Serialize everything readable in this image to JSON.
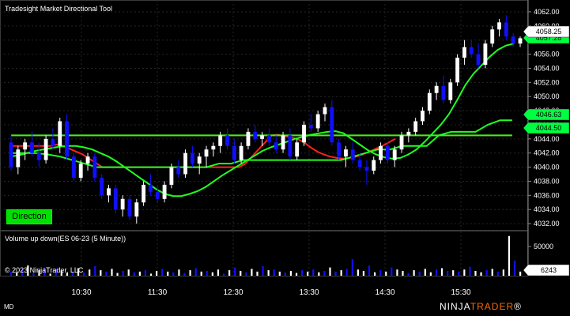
{
  "title": "Tradesight Market Directional Tool",
  "direction_button": "Direction",
  "volume_panel_title": "Volume up down(ES 06-23 (5 Minute))",
  "copyright": "© 2023 NinjaTrader, LLC",
  "status_label": "MD",
  "logo": {
    "part1": "NINJA",
    "part2": "TRADER",
    "suffix": "®"
  },
  "colors": {
    "up_candle": "#ffffff",
    "down_candle": "#1010ff",
    "red_line": "#ff2020",
    "green_line": "#20ff20",
    "badge_green": "#00ff40",
    "direction_bg": "#00e000",
    "logo_accent": "#ff6a00"
  },
  "price_axis": {
    "ticks": [
      "4062.00",
      "4060.00",
      "4058.00",
      "4056.00",
      "4054.00",
      "4052.00",
      "4050.00",
      "4048.00",
      "4046.00",
      "4044.00",
      "4042.00",
      "4040.00",
      "4038.00",
      "4036.00",
      "4034.00",
      "4032.00"
    ],
    "tick_values": [
      4062,
      4060,
      4058,
      4056,
      4054,
      4052,
      4050,
      4048,
      4046,
      4044,
      4042,
      4040,
      4038,
      4036,
      4034,
      4032
    ]
  },
  "price_badges": [
    {
      "label": "4058.25",
      "value": 4058.25,
      "style": "white"
    },
    {
      "label": "4057.28",
      "value": 4057.28,
      "style": "green"
    },
    {
      "label": "4046.63",
      "value": 4046.63,
      "style": "green"
    },
    {
      "label": "4044.50",
      "value": 4044.5,
      "style": "green"
    }
  ],
  "volume_axis": {
    "ticks": [
      "50000"
    ],
    "tick_values": [
      50000
    ]
  },
  "volume_badge": {
    "label": "6243",
    "value": 6243
  },
  "time_axis": {
    "labels": [
      "10:30",
      "11:30",
      "12:30",
      "13:30",
      "14:30",
      "15:30"
    ]
  },
  "chart_data": {
    "type": "candlestick",
    "title": "Tradesight Market Directional Tool",
    "ylim": [
      4031,
      4063
    ],
    "candles": [
      [
        4043.5,
        4044.5,
        4039.5,
        4040.0
      ],
      [
        4040.0,
        4043.0,
        4039.0,
        4042.5
      ],
      [
        4042.5,
        4044.0,
        4041.0,
        4043.5
      ],
      [
        4043.5,
        4045.0,
        4041.5,
        4042.0
      ],
      [
        4042.0,
        4043.5,
        4040.0,
        4041.0
      ],
      [
        4041.0,
        4044.5,
        4040.5,
        4044.0
      ],
      [
        4044.0,
        4045.5,
        4042.5,
        4043.0
      ],
      [
        4043.0,
        4047.0,
        4042.0,
        4046.5
      ],
      [
        4046.5,
        4047.5,
        4041.0,
        4041.5
      ],
      [
        4041.5,
        4042.0,
        4038.0,
        4038.5
      ],
      [
        4038.5,
        4041.0,
        4038.0,
        4040.5
      ],
      [
        4040.5,
        4042.0,
        4039.5,
        4041.5
      ],
      [
        4041.5,
        4042.0,
        4038.0,
        4038.5
      ],
      [
        4038.5,
        4039.0,
        4035.5,
        4036.0
      ],
      [
        4036.0,
        4037.5,
        4035.0,
        4037.0
      ],
      [
        4037.0,
        4037.5,
        4033.5,
        4034.0
      ],
      [
        4034.0,
        4036.0,
        4033.0,
        4035.5
      ],
      [
        4035.5,
        4036.0,
        4032.5,
        4033.0
      ],
      [
        4033.0,
        4035.5,
        4032.0,
        4035.0
      ],
      [
        4035.0,
        4038.0,
        4034.5,
        4037.5
      ],
      [
        4037.5,
        4039.0,
        4036.0,
        4036.5
      ],
      [
        4036.5,
        4037.5,
        4035.0,
        4035.5
      ],
      [
        4035.5,
        4038.0,
        4035.0,
        4037.5
      ],
      [
        4037.5,
        4040.5,
        4037.0,
        4040.0
      ],
      [
        4040.0,
        4041.0,
        4038.5,
        4039.0
      ],
      [
        4039.0,
        4042.5,
        4038.5,
        4042.0
      ],
      [
        4042.0,
        4043.0,
        4040.0,
        4040.5
      ],
      [
        4040.5,
        4042.0,
        4039.0,
        4041.5
      ],
      [
        4041.5,
        4043.0,
        4040.0,
        4042.5
      ],
      [
        4042.5,
        4043.5,
        4041.5,
        4043.0
      ],
      [
        4043.0,
        4045.0,
        4042.0,
        4044.5
      ],
      [
        4044.5,
        4045.5,
        4042.5,
        4043.0
      ],
      [
        4043.0,
        4044.0,
        4040.5,
        4041.0
      ],
      [
        4041.0,
        4043.5,
        4040.5,
        4043.0
      ],
      [
        4043.0,
        4045.5,
        4042.5,
        4045.0
      ],
      [
        4045.0,
        4046.0,
        4043.5,
        4044.0
      ],
      [
        4044.0,
        4045.0,
        4043.0,
        4044.5
      ],
      [
        4044.5,
        4045.5,
        4043.0,
        4043.5
      ],
      [
        4043.5,
        4044.5,
        4042.0,
        4042.5
      ],
      [
        4042.5,
        4045.0,
        4042.0,
        4044.5
      ],
      [
        4044.5,
        4045.5,
        4041.0,
        4041.5
      ],
      [
        4041.5,
        4044.0,
        4041.0,
        4043.5
      ],
      [
        4043.5,
        4046.5,
        4043.0,
        4046.0
      ],
      [
        4046.0,
        4047.5,
        4045.0,
        4045.5
      ],
      [
        4045.5,
        4048.0,
        4045.0,
        4047.5
      ],
      [
        4047.5,
        4049.0,
        4046.5,
        4048.5
      ],
      [
        4048.5,
        4049.5,
        4043.0,
        4043.5
      ],
      [
        4043.5,
        4044.0,
        4041.0,
        4041.5
      ],
      [
        4041.5,
        4043.0,
        4040.0,
        4042.5
      ],
      [
        4042.5,
        4043.5,
        4040.5,
        4041.0
      ],
      [
        4041.0,
        4042.0,
        4039.5,
        4040.0
      ],
      [
        4040.0,
        4041.0,
        4037.5,
        4039.5
      ],
      [
        4039.5,
        4041.5,
        4039.0,
        4041.0
      ],
      [
        4041.0,
        4043.5,
        4040.5,
        4043.0
      ],
      [
        4043.0,
        4043.5,
        4040.5,
        4041.0
      ],
      [
        4041.0,
        4043.0,
        4040.0,
        4042.5
      ],
      [
        4042.5,
        4045.0,
        4042.0,
        4044.5
      ],
      [
        4044.5,
        4045.5,
        4043.5,
        4045.0
      ],
      [
        4045.0,
        4047.0,
        4044.5,
        4046.5
      ],
      [
        4046.5,
        4048.5,
        4046.0,
        4048.0
      ],
      [
        4048.0,
        4051.0,
        4047.5,
        4050.5
      ],
      [
        4050.5,
        4052.0,
        4049.5,
        4051.5
      ],
      [
        4051.5,
        4053.0,
        4049.0,
        4049.5
      ],
      [
        4049.5,
        4052.5,
        4049.0,
        4052.0
      ],
      [
        4052.0,
        4056.0,
        4051.5,
        4055.5
      ],
      [
        4055.5,
        4058.0,
        4054.5,
        4057.0
      ],
      [
        4057.0,
        4058.0,
        4055.5,
        4056.0
      ],
      [
        4056.0,
        4057.5,
        4054.0,
        4054.5
      ],
      [
        4054.5,
        4058.0,
        4054.0,
        4057.5
      ],
      [
        4057.5,
        4060.0,
        4057.0,
        4059.5
      ],
      [
        4059.5,
        4061.0,
        4058.5,
        4060.5
      ],
      [
        4060.5,
        4061.5,
        4058.0,
        4058.5
      ],
      [
        4058.5,
        4059.0,
        4057.0,
        4057.5
      ],
      [
        4057.5,
        4058.5,
        4057.0,
        4058.25
      ]
    ],
    "red_line": [
      4043,
      4043,
      4043,
      4043,
      4043,
      4043,
      4043,
      4043.2,
      4043,
      4042.6,
      4042.2,
      4041.8,
      4041.2,
      4040.6,
      4040.0,
      4040.0,
      4040.0,
      4040.0,
      4040.0,
      4040.0,
      4040.0,
      4040.0,
      4040.0,
      4040.0,
      4040.0,
      4040.0,
      4040.0,
      4040.0,
      4040.0,
      4040.0,
      4040.0,
      4040.0,
      4040.0,
      4040.0,
      4040.0,
      4040.0,
      4040.5,
      4041.5,
      4042.5,
      4043.5,
      4044.5,
      4044.6,
      4044.4,
      4044.2,
      4044.0,
      4043.5,
      4042.8,
      4042.2,
      4041.8,
      4041.5,
      4041.3,
      4041.2,
      4041.3,
      4041.5,
      4041.8,
      4042.2,
      4042.6,
      4043.0,
      4043.5,
      4044.0
    ],
    "green_line": [
      4041.5,
      4041.7,
      4042.0,
      4042.3,
      4042.5,
      4042.7,
      4042.9,
      4043.0,
      4043.0,
      4042.8,
      4042.5,
      4042.0,
      4041.5,
      4040.8,
      4040.0,
      4039.2,
      4038.4,
      4037.6,
      4036.8,
      4036.2,
      4035.9,
      4035.9,
      4036.2,
      4036.6,
      4037.2,
      4038.0,
      4038.8,
      4039.5,
      4040.2,
      4040.9,
      4041.6,
      4042.3,
      4042.8,
      4043.2,
      4043.6,
      4044.0,
      4044.3,
      4044.6,
      4044.8,
      4045.0,
      4045.1,
      4044.8,
      4044.0,
      4043.2,
      4042.4,
      4041.8,
      4041.4,
      4041.2,
      4041.3,
      4041.8,
      4042.5,
      4043.6,
      4044.8,
      4046.0,
      4047.5,
      4049.5,
      4051.6,
      4053.2,
      4054.4,
      4055.6,
      4056.6,
      4057.2,
      4057.5
    ],
    "red_level": 4044.5,
    "green_level_low": 4044.5,
    "green_level_high": 4046.63,
    "volume_up_down": [
      6,
      5,
      9,
      15,
      4,
      8,
      12,
      3,
      10,
      7,
      4,
      6,
      11,
      5,
      9,
      14,
      8,
      6,
      10,
      4,
      7,
      9,
      5,
      6,
      8,
      3,
      7,
      10,
      6,
      5,
      9,
      4,
      8,
      11,
      6,
      7,
      5,
      9,
      3,
      8,
      12,
      7,
      5,
      10,
      6,
      14,
      8,
      9,
      6,
      5,
      7,
      4,
      8,
      6,
      9,
      5,
      7,
      12,
      6,
      8,
      10,
      24,
      9,
      7,
      15,
      5,
      8,
      6,
      12,
      9,
      7,
      4,
      8,
      6,
      10,
      5,
      9,
      11,
      7,
      8,
      6,
      9,
      13,
      7,
      5,
      8,
      10,
      6,
      9,
      58,
      22,
      6
    ],
    "volume_colors": [
      "b",
      "w",
      "b",
      "w",
      "b",
      "w",
      "b",
      "w",
      "b",
      "w",
      "w",
      "b",
      "w",
      "b",
      "w",
      "b",
      "w",
      "b",
      "w",
      "w",
      "b",
      "w",
      "b",
      "w",
      "b",
      "w",
      "w",
      "b",
      "w",
      "b",
      "w",
      "b",
      "w",
      "b",
      "w",
      "b",
      "w",
      "w",
      "b",
      "w",
      "b",
      "w",
      "b",
      "w",
      "w",
      "b",
      "w",
      "b",
      "w",
      "b",
      "w",
      "w",
      "b",
      "w",
      "b",
      "w",
      "b",
      "w",
      "b",
      "w",
      "b",
      "b",
      "w",
      "w",
      "b",
      "w",
      "b",
      "w",
      "b",
      "w",
      "w",
      "b",
      "w",
      "b",
      "w",
      "w",
      "b",
      "w",
      "b",
      "w",
      "b",
      "w",
      "b",
      "w",
      "w",
      "b",
      "w",
      "b",
      "w",
      "w",
      "b",
      "w"
    ]
  }
}
